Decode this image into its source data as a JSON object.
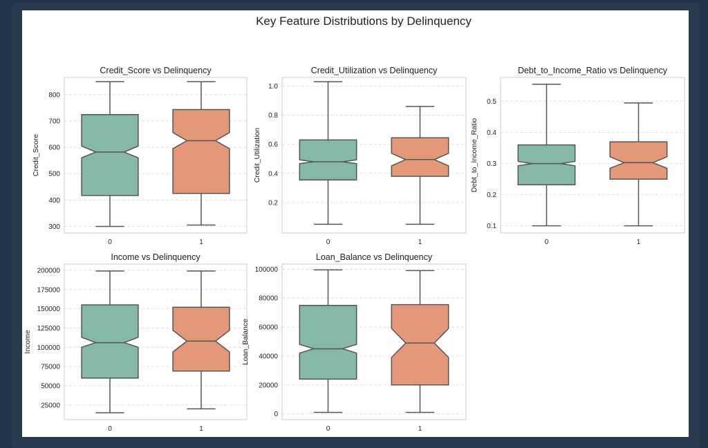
{
  "figure": {
    "suptitle": "Key Feature Distributions by Delinquency"
  },
  "colors": {
    "group_0": "#85b8a5",
    "group_1": "#e3987a",
    "box_edge": "#555555",
    "grid": "#d9d9e2",
    "frame_border": "#cccccc"
  },
  "chart_data": [
    {
      "type": "box",
      "title": "Credit_Score vs Delinquency",
      "xlabel": "",
      "ylabel": "Credit_Score",
      "categories": [
        "0",
        "1"
      ],
      "ylim": [
        275,
        865
      ],
      "yticks": [
        300,
        400,
        500,
        600,
        700,
        800
      ],
      "ytick_labels": [
        "300",
        "400",
        "500",
        "600",
        "700",
        "800"
      ],
      "notched": true,
      "boxes": [
        {
          "category": "0",
          "whisker_low": 300,
          "q1": 417,
          "median": 582,
          "q3": 724,
          "whisker_high": 849,
          "notch_low": 560,
          "notch_high": 605
        },
        {
          "category": "1",
          "whisker_low": 305,
          "q1": 425,
          "median": 625,
          "q3": 743,
          "whisker_high": 849,
          "notch_low": 595,
          "notch_high": 656
        }
      ]
    },
    {
      "type": "box",
      "title": "Credit_Utilization vs Delinquency",
      "xlabel": "",
      "ylabel": "Credit_Utilization",
      "categories": [
        "0",
        "1"
      ],
      "ylim": [
        -0.01,
        1.06
      ],
      "yticks": [
        0.2,
        0.4,
        0.6,
        0.8,
        1.0
      ],
      "ytick_labels": [
        "0.2",
        "0.4",
        "0.6",
        "0.8",
        "1.0"
      ],
      "notched": true,
      "boxes": [
        {
          "category": "0",
          "whisker_low": 0.05,
          "q1": 0.355,
          "median": 0.48,
          "q3": 0.63,
          "whisker_high": 1.03,
          "notch_low": 0.467,
          "notch_high": 0.493
        },
        {
          "category": "1",
          "whisker_low": 0.05,
          "q1": 0.38,
          "median": 0.495,
          "q3": 0.645,
          "whisker_high": 0.86,
          "notch_low": 0.452,
          "notch_high": 0.538
        }
      ]
    },
    {
      "type": "box",
      "title": "Debt_to_Income_Ratio vs Delinquency",
      "xlabel": "",
      "ylabel": "Debt_to_Income_Ratio",
      "categories": [
        "0",
        "1"
      ],
      "ylim": [
        0.077,
        0.577
      ],
      "yticks": [
        0.1,
        0.2,
        0.3,
        0.4,
        0.5
      ],
      "ytick_labels": [
        "0.1",
        "0.2",
        "0.3",
        "0.4",
        "0.5"
      ],
      "notched": true,
      "boxes": [
        {
          "category": "0",
          "whisker_low": 0.1,
          "q1": 0.232,
          "median": 0.3,
          "q3": 0.36,
          "whisker_high": 0.555,
          "notch_low": 0.293,
          "notch_high": 0.307
        },
        {
          "category": "1",
          "whisker_low": 0.1,
          "q1": 0.25,
          "median": 0.303,
          "q3": 0.37,
          "whisker_high": 0.495,
          "notch_low": 0.285,
          "notch_high": 0.322
        }
      ]
    },
    {
      "type": "box",
      "title": "Income vs Delinquency",
      "xlabel": "",
      "ylabel": "Income",
      "categories": [
        "0",
        "1"
      ],
      "ylim": [
        6000,
        208000
      ],
      "yticks": [
        25000,
        50000,
        75000,
        100000,
        125000,
        150000,
        175000,
        200000
      ],
      "ytick_labels": [
        "25000",
        "50000",
        "75000",
        "100000",
        "125000",
        "150000",
        "175000",
        "200000"
      ],
      "notched": true,
      "boxes": [
        {
          "category": "0",
          "whisker_low": 15000,
          "q1": 60000,
          "median": 106000,
          "q3": 155000,
          "whisker_high": 199000,
          "notch_low": 100000,
          "notch_high": 113000
        },
        {
          "category": "1",
          "whisker_low": 20000,
          "q1": 69000,
          "median": 108000,
          "q3": 152000,
          "whisker_high": 199000,
          "notch_low": 94000,
          "notch_high": 122000
        }
      ]
    },
    {
      "type": "box",
      "title": "Loan_Balance vs Delinquency",
      "xlabel": "",
      "ylabel": "Loan_Balance",
      "categories": [
        "0",
        "1"
      ],
      "ylim": [
        -4000,
        103500
      ],
      "yticks": [
        0,
        20000,
        40000,
        60000,
        80000,
        100000
      ],
      "ytick_labels": [
        "0",
        "20000",
        "40000",
        "60000",
        "80000",
        "100000"
      ],
      "notched": true,
      "boxes": [
        {
          "category": "0",
          "whisker_low": 1000,
          "q1": 24000,
          "median": 45000,
          "q3": 75000,
          "whisker_high": 99500,
          "notch_low": 42000,
          "notch_high": 48000
        },
        {
          "category": "1",
          "whisker_low": 1000,
          "q1": 20000,
          "median": 49000,
          "q3": 75500,
          "whisker_high": 99000,
          "notch_low": 39000,
          "notch_high": 59000
        }
      ]
    }
  ]
}
